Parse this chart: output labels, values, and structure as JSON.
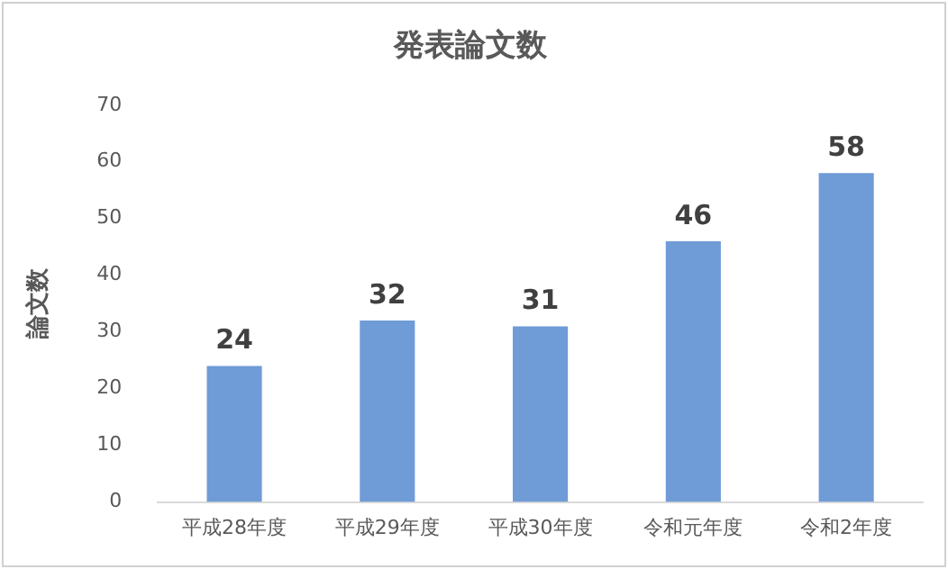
{
  "chart_data": {
    "type": "bar",
    "title": "発表論文数",
    "ylabel": "論文数",
    "categories": [
      "平成28年度",
      "平成29年度",
      "平成30年度",
      "令和元年度",
      "令和2年度"
    ],
    "values": [
      24,
      32,
      31,
      46,
      58
    ],
    "color": "#6f9bd6",
    "ylim": [
      0,
      70
    ],
    "yticks": [
      0,
      10,
      20,
      30,
      40,
      50,
      60,
      70
    ],
    "grid": false,
    "legend": false,
    "data_labels": true
  }
}
